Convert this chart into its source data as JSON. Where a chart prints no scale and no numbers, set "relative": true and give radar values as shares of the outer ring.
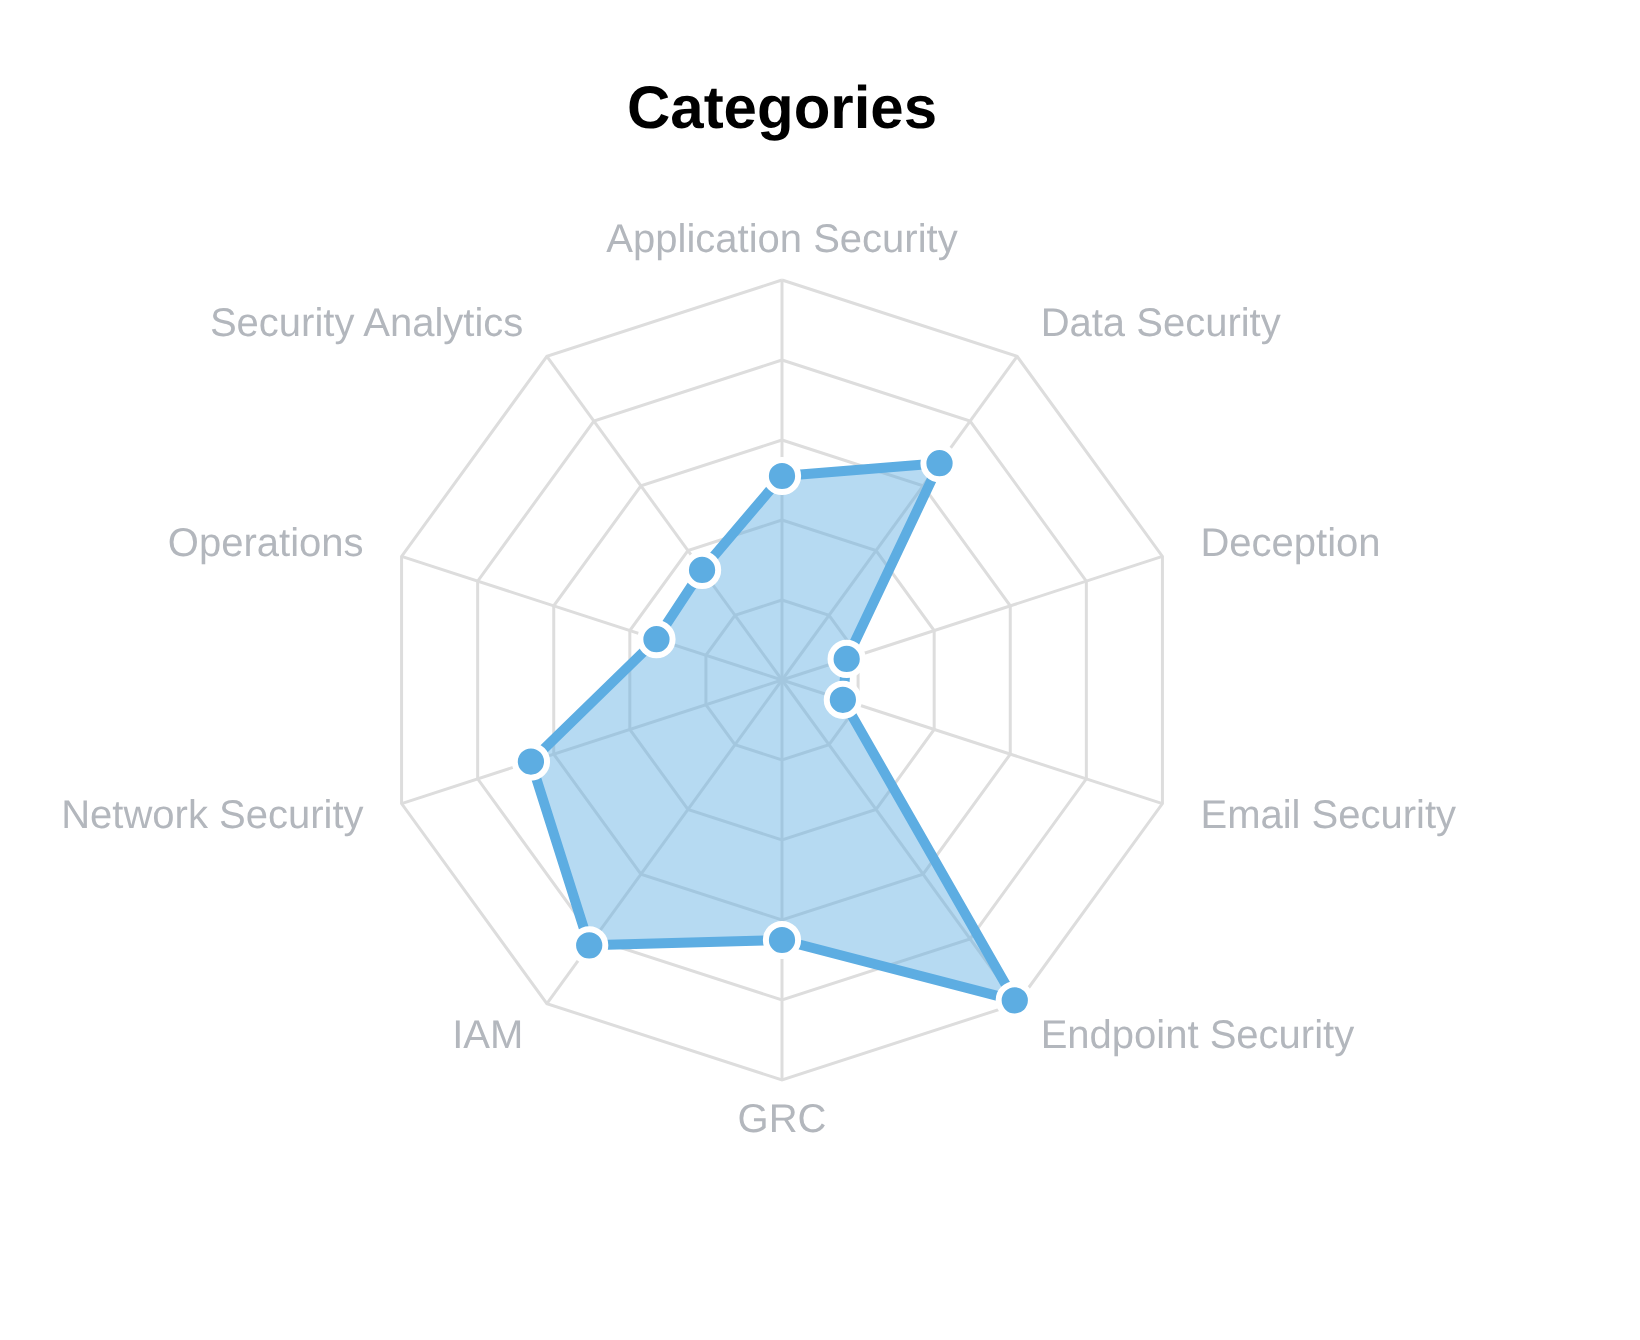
{
  "chart_data": {
    "type": "radar",
    "title": "Categories",
    "relative": true,
    "grid": true,
    "marker": "circle",
    "categories": [
      "Application Security",
      "Data Security",
      "Deception",
      "Email Security",
      "Endpoint Security",
      "GRC",
      "IAM",
      "Network Security",
      "Operations",
      "Security Analytics"
    ],
    "series": [
      {
        "color": "#5dade2",
        "values": [
          0.51,
          0.67,
          0.17,
          0.16,
          0.99,
          0.65,
          0.82,
          0.66,
          0.33,
          0.34
        ]
      }
    ]
  }
}
